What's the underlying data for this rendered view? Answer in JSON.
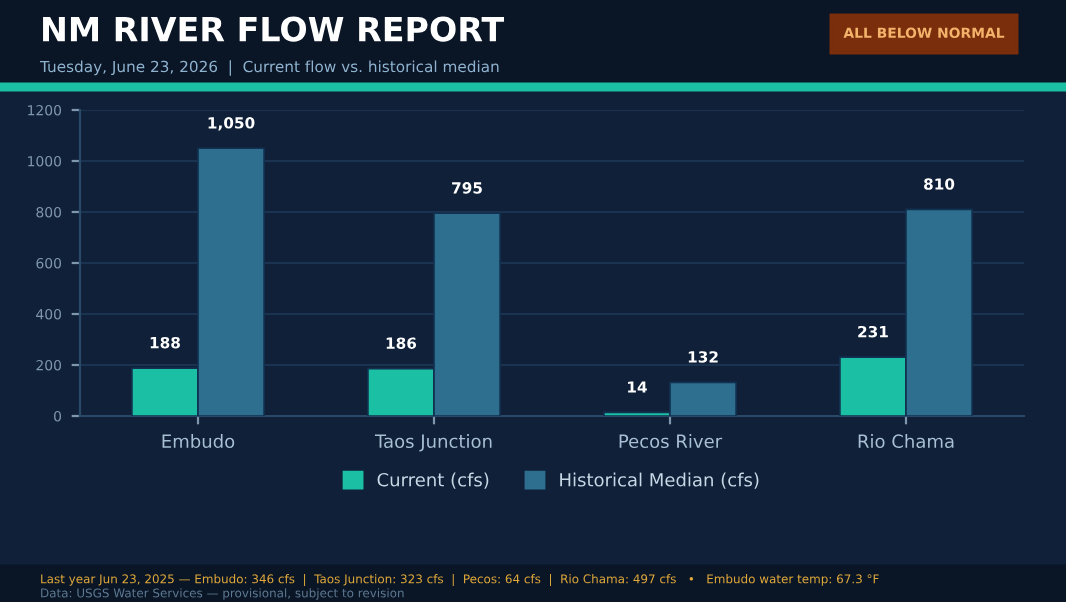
{
  "chart_data": {
    "type": "bar",
    "title": "NM RIVER FLOW REPORT",
    "subtitle": "Tuesday, June 23, 2026  |  Current flow vs. historical median",
    "categories": [
      "Embudo",
      "Taos Junction",
      "Pecos River",
      "Rio Chama"
    ],
    "series": [
      {
        "name": "Current (cfs)",
        "color": "#1bbfa3",
        "values": [
          188,
          186,
          14,
          231
        ],
        "value_labels": [
          "188",
          "186",
          "14",
          "231"
        ]
      },
      {
        "name": "Historical Median (cfs)",
        "color": "#2e6e8e",
        "values": [
          1050,
          795,
          132,
          810
        ],
        "value_labels": [
          "1,050",
          "795",
          "132",
          "810"
        ]
      }
    ],
    "ylim": [
      0,
      1200
    ],
    "yticks": [
      0,
      200,
      400,
      600,
      800,
      1000,
      1200
    ],
    "grid": "y",
    "legend": "bottom",
    "annotations": [
      "ALL BELOW NORMAL",
      "Last year Jun 23, 2025 — Embudo: 346 cfs  |  Taos Junction: 323 cfs  |  Pecos: 64 cfs  |  Rio Chama: 497 cfs   •   Embudo water temp: 67.3 °F",
      "Data: USGS Water Services — provisional, subject to revision"
    ]
  }
}
